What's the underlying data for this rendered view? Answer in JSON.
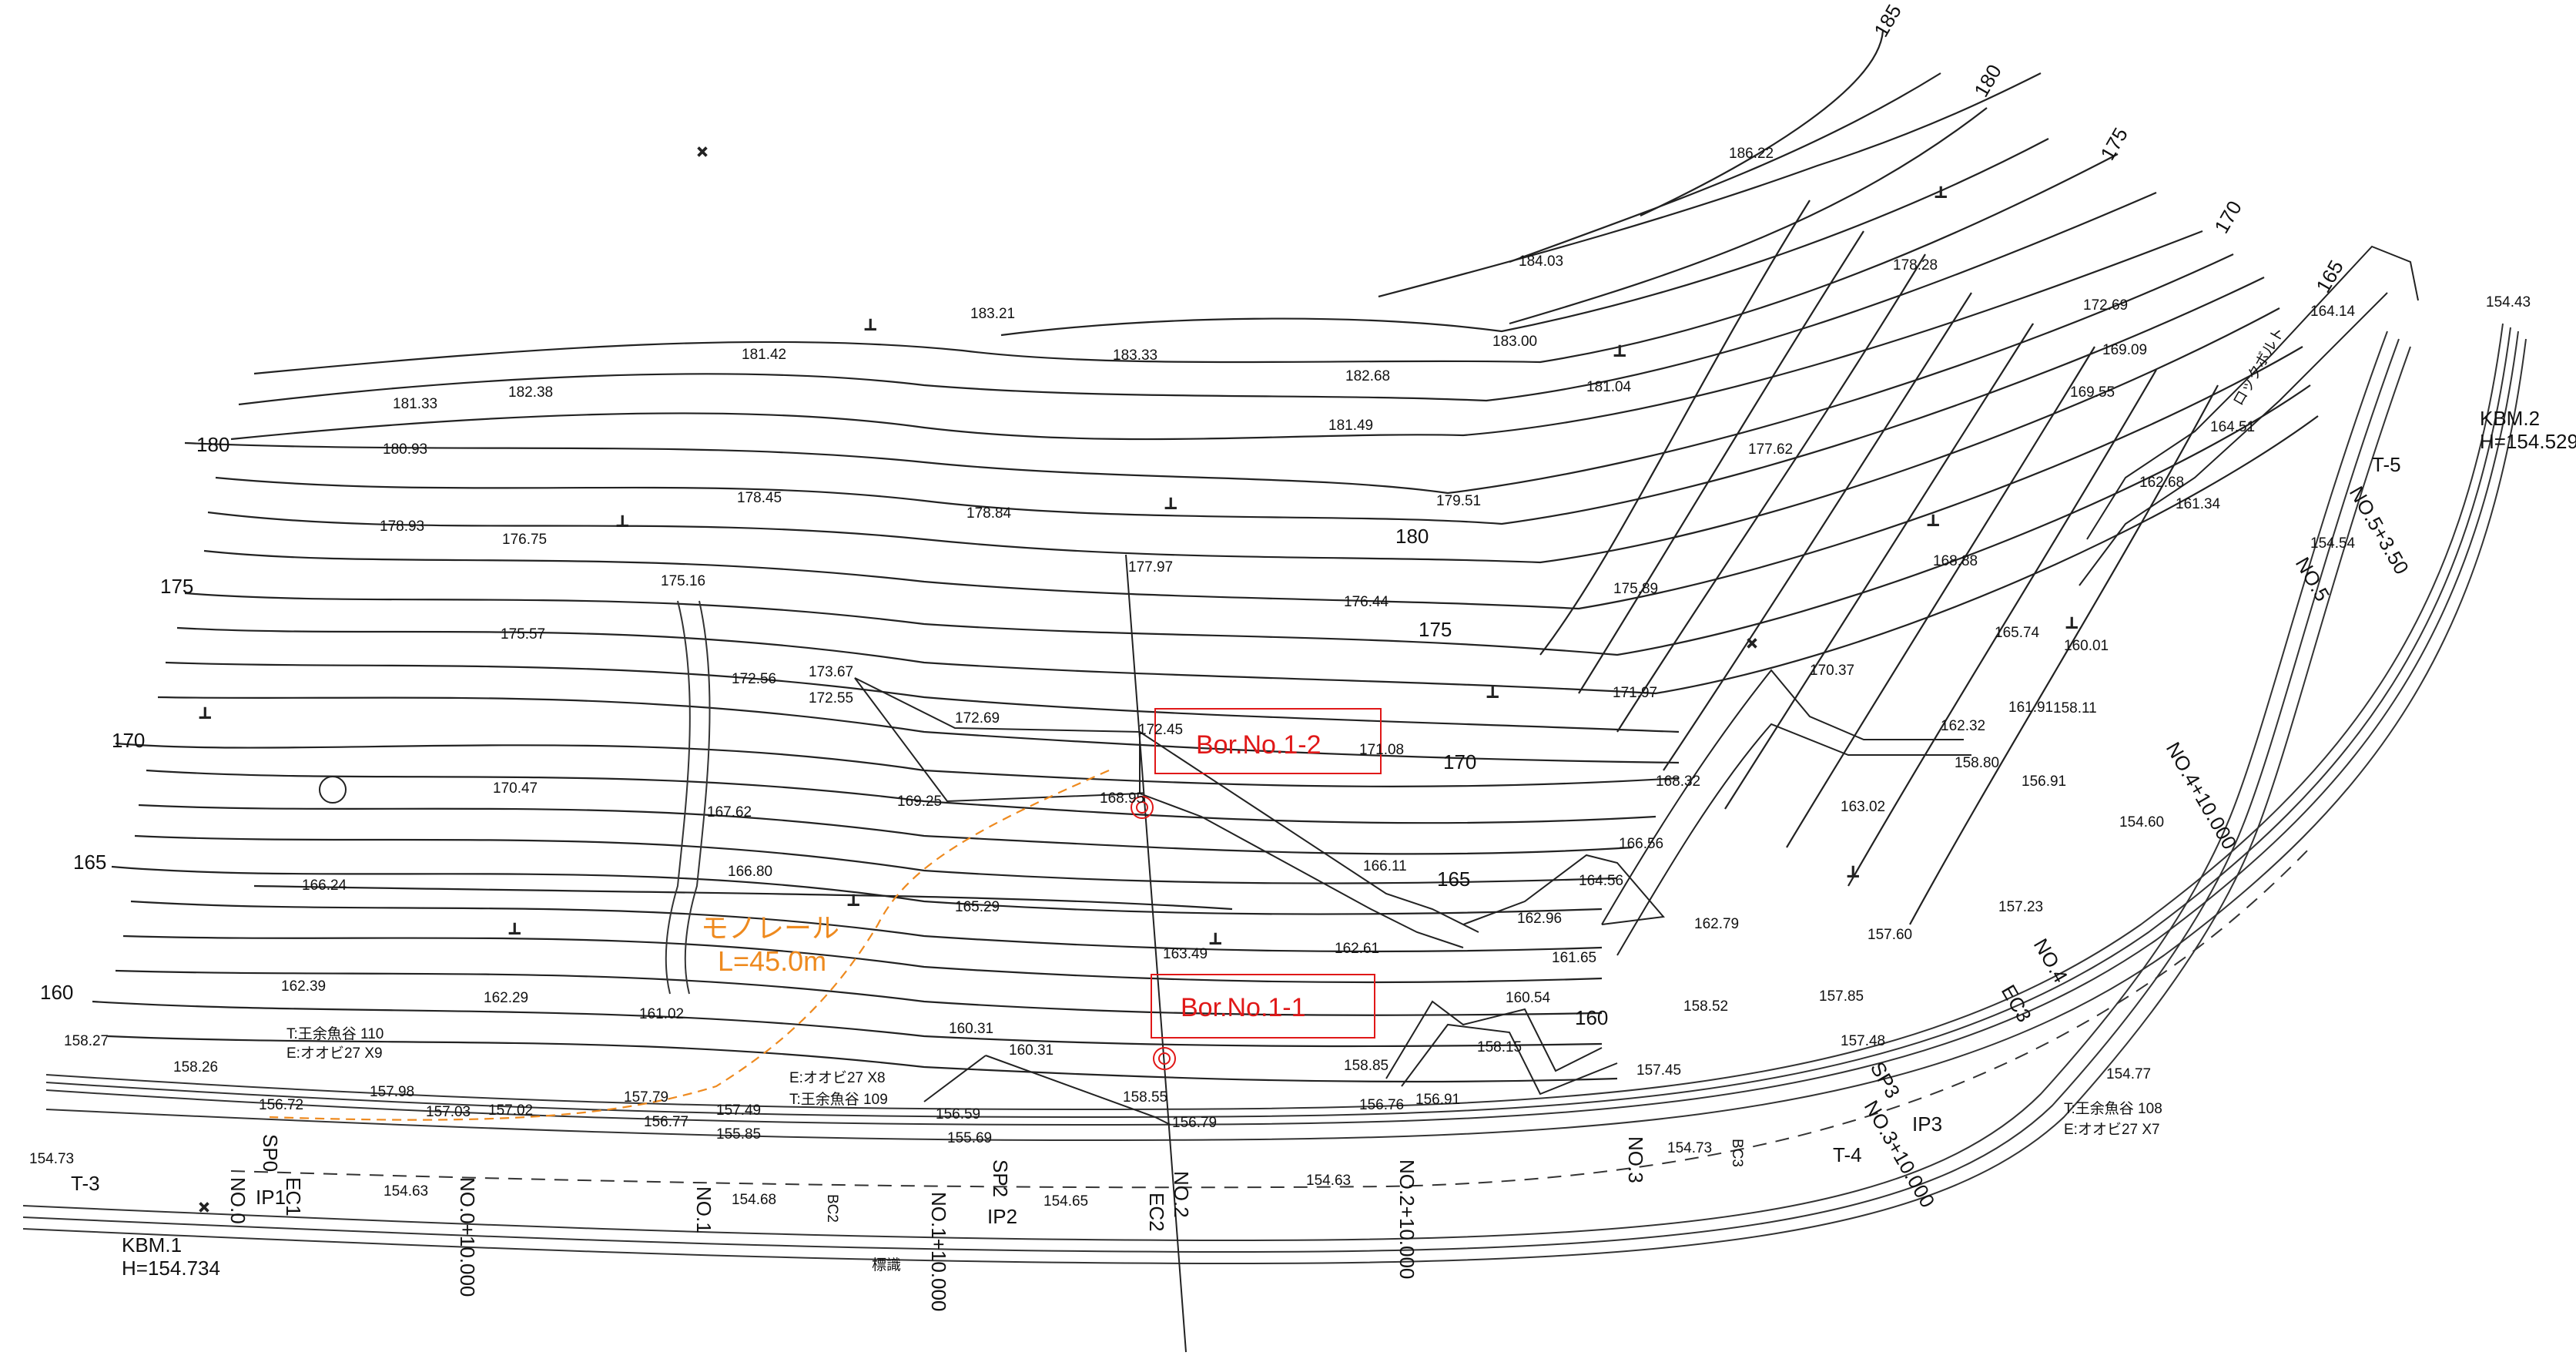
{
  "colors": {
    "line": "#222222",
    "boring": "#e01818",
    "monorail": "#ee8a1f",
    "background": "#ffffff"
  },
  "index_contours": [
    "185",
    "180",
    "175",
    "170",
    "165",
    "160"
  ],
  "boreholes": [
    "Bor.No.1-2",
    "Bor.No.1-1"
  ],
  "monorail": {
    "name": "モノレール",
    "length": "L=45.0m"
  },
  "benchmarks": {
    "kbm1": {
      "name": "KBM.1",
      "height": "H=154.734"
    },
    "kbm2": {
      "name": "KBM.2",
      "height": "H=154.529"
    }
  },
  "stations": [
    "NO.0",
    "NO.0+10.000",
    "NO.1",
    "NO.1+10.000",
    "NO.2",
    "NO.2+10.000",
    "NO.3",
    "NO.3+10.000",
    "NO.4",
    "NO.4+10.000",
    "NO.5",
    "NO.5+3.50"
  ],
  "curve_points": [
    "SP0",
    "EC1",
    "IP1",
    "BC2",
    "SP2",
    "IP2",
    "EC2",
    "BC3",
    "SP3",
    "IP3",
    "EC3"
  ],
  "traverse": [
    "T-3",
    "T-4",
    "T-5"
  ],
  "trees": [
    {
      "t": "T:王余魚谷 110",
      "e": "E:オオビ27 X9"
    },
    {
      "t": "T:王余魚谷 109",
      "e": "E:オオビ27 X8"
    },
    {
      "t": "T:王余魚谷 108",
      "e": "E:オオビ27 X7"
    }
  ],
  "text_labels": {
    "rock_bolt": "ロックボルト",
    "sign": "標識"
  },
  "spot_elevations": [
    "186.22",
    "184.03",
    "183.21",
    "183.33",
    "183.00",
    "181.42",
    "182.68",
    "181.04",
    "181.33",
    "182.38",
    "180.93",
    "181.49",
    "178.28",
    "172.69",
    "169.09",
    "164.14",
    "154.43",
    "169.55",
    "164.51",
    "162.68",
    "161.34",
    "177.62",
    "179.51",
    "178.93",
    "178.45",
    "178.84",
    "176.75",
    "177.97",
    "176.44",
    "175.89",
    "168.88",
    "175.16",
    "175.57",
    "165.74",
    "160.01",
    "173.67",
    "172.56",
    "172.55",
    "172.69",
    "172.45",
    "171.97",
    "171.08",
    "170.37",
    "162.32",
    "161.91",
    "158.11",
    "170.47",
    "169.25",
    "168.95",
    "168.32",
    "158.80",
    "156.91",
    "163.02",
    "167.62",
    "166.80",
    "166.11",
    "166.56",
    "164.56",
    "166.24",
    "165.29",
    "162.96",
    "162.79",
    "161.65",
    "163.49",
    "162.61",
    "157.23",
    "157.60",
    "162.39",
    "162.29",
    "161.02",
    "160.54",
    "158.15",
    "158.52",
    "157.85",
    "160.31",
    "160.31",
    "158.85",
    "157.48",
    "157.45",
    "158.27",
    "158.26",
    "156.72",
    "157.98",
    "157.79",
    "157.03",
    "157.02",
    "156.77",
    "155.85",
    "157.49",
    "156.59",
    "155.69",
    "158.55",
    "156.79",
    "156.76",
    "156.91",
    "154.73",
    "154.63",
    "154.68",
    "154.65",
    "154.63",
    "154.73",
    "154.54",
    "154.60",
    "154.77"
  ]
}
